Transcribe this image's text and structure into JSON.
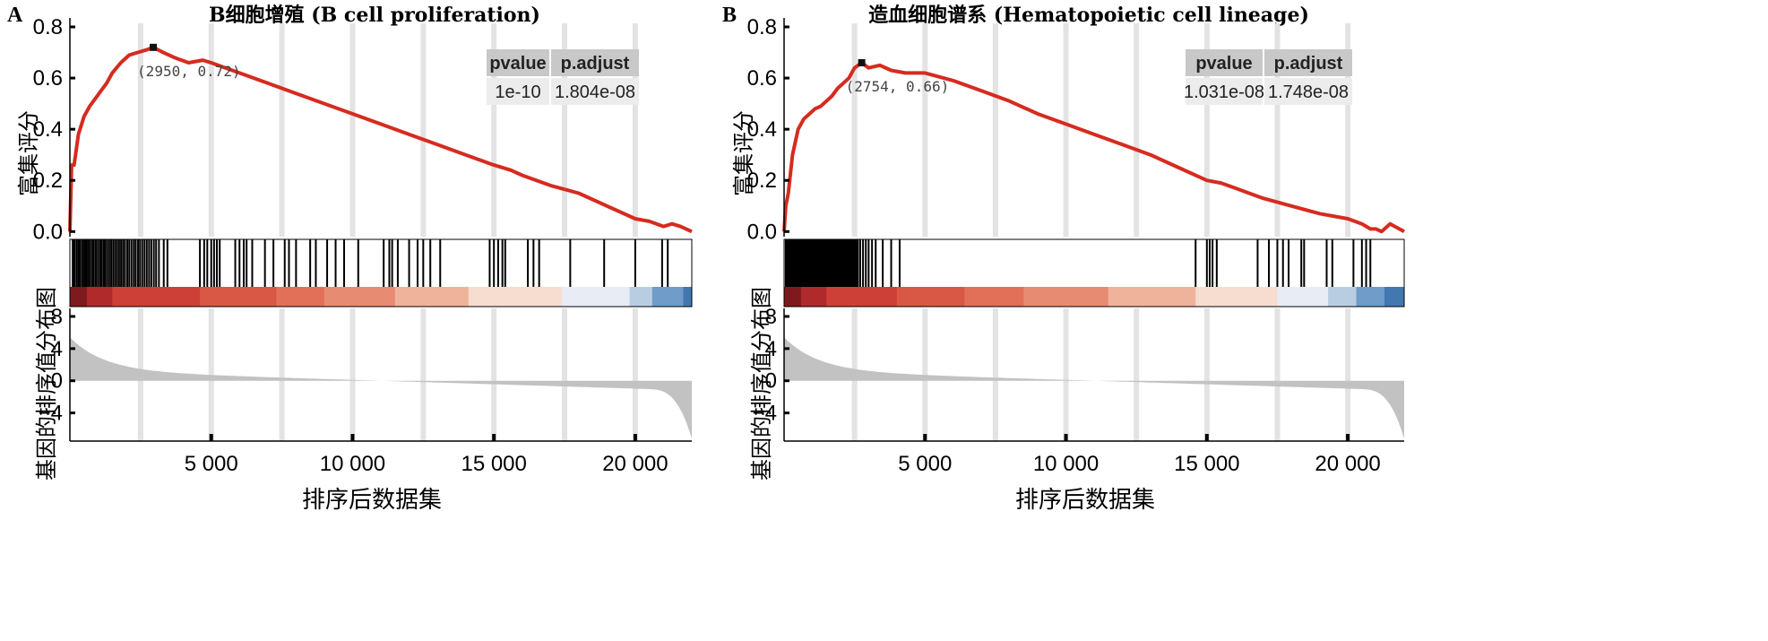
{
  "chart_data": [
    {
      "type": "line",
      "panel": "A",
      "title": "B细胞增殖 (B cell proliferation)",
      "es_ylabel": "富集评分",
      "rank_ylabel": "基因的排序值分布图",
      "xlabel": "排序后数据集",
      "x_ticks": [
        "5 000",
        "10 000",
        "15 000",
        "20 000"
      ],
      "x_tick_values": [
        5000,
        10000,
        15000,
        20000
      ],
      "xlim": [
        0,
        22000
      ],
      "es_yticks": [
        "0.0",
        "0.2",
        "0.4",
        "0.6",
        "0.8"
      ],
      "es_ylim": [
        -0.02,
        0.8
      ],
      "rank_yticks": [
        "8",
        "4",
        "0",
        "−4"
      ],
      "rank_ylim": [
        -7.5,
        9
      ],
      "peak": {
        "x": 2950,
        "y": 0.72,
        "label": "(2950, 0.72)"
      },
      "table": {
        "headers": [
          "pvalue",
          "p.adjust"
        ],
        "values": [
          "1e-10",
          "1.804e-08"
        ]
      },
      "x": [
        0,
        60,
        150,
        300,
        500,
        700,
        900,
        1100,
        1300,
        1500,
        1800,
        2100,
        2400,
        2700,
        2950,
        3300,
        3700,
        4200,
        4700,
        5000,
        5500,
        6000,
        7000,
        8000,
        9000,
        10000,
        11000,
        12000,
        13000,
        14000,
        15000,
        15600,
        16000,
        17000,
        18000,
        19000,
        20000,
        20500,
        21000,
        21300,
        21600,
        22000
      ],
      "es": [
        0.0,
        0.26,
        0.26,
        0.38,
        0.45,
        0.49,
        0.52,
        0.55,
        0.58,
        0.62,
        0.66,
        0.69,
        0.7,
        0.71,
        0.72,
        0.7,
        0.68,
        0.66,
        0.67,
        0.66,
        0.64,
        0.62,
        0.58,
        0.54,
        0.5,
        0.46,
        0.42,
        0.38,
        0.34,
        0.3,
        0.26,
        0.24,
        0.22,
        0.18,
        0.15,
        0.1,
        0.05,
        0.04,
        0.02,
        0.03,
        0.02,
        0.0
      ],
      "hits": [
        100,
        160,
        230,
        290,
        350,
        420,
        480,
        540,
        600,
        660,
        720,
        790,
        850,
        920,
        990,
        1060,
        1120,
        1190,
        1250,
        1320,
        1390,
        1460,
        1530,
        1600,
        1670,
        1740,
        1810,
        1880,
        1950,
        2030,
        2100,
        2180,
        2260,
        2330,
        2410,
        2480,
        2560,
        2640,
        2720,
        2800,
        2880,
        2970,
        3050,
        3150,
        3320,
        3450,
        4600,
        4750,
        4860,
        5000,
        5100,
        5200,
        5300,
        5850,
        6000,
        6150,
        6250,
        6450,
        6900,
        7200,
        7600,
        7750,
        8000,
        8500,
        8700,
        9100,
        9400,
        9700,
        10200,
        11100,
        11300,
        11400,
        11600,
        12000,
        12300,
        12500,
        12750,
        13100,
        14850,
        15000,
        15150,
        15300,
        15400,
        16200,
        16400,
        16600,
        17700,
        18900,
        20000,
        20950,
        21150
      ],
      "heat_colors": [
        "#7e1a1e",
        "#b02a2c",
        "#cc4038",
        "#d85845",
        "#e27059",
        "#e88b73",
        "#efb39c",
        "#f7dcd0",
        "#e7ecf5",
        "#b9cde2",
        "#6f9cc8",
        "#4377b0"
      ],
      "heat_breaks": [
        0,
        600,
        1500,
        4600,
        7300,
        9000,
        11500,
        14100,
        17400,
        19800,
        20600,
        21700,
        22000
      ]
    },
    {
      "type": "line",
      "panel": "B",
      "title": "造血细胞谱系 (Hematopoietic cell lineage)",
      "es_ylabel": "富集评分",
      "rank_ylabel": "基因的排序值分布图",
      "xlabel": "排序后数据集",
      "x_ticks": [
        "5 000",
        "10 000",
        "15 000",
        "20 000"
      ],
      "x_tick_values": [
        5000,
        10000,
        15000,
        20000
      ],
      "xlim": [
        0,
        22000
      ],
      "es_yticks": [
        "0.0",
        "0.2",
        "0.4",
        "0.6",
        "0.8"
      ],
      "es_ylim": [
        -0.02,
        0.8
      ],
      "rank_yticks": [
        "8",
        "4",
        "0",
        "−4"
      ],
      "rank_ylim": [
        -7.5,
        9
      ],
      "peak": {
        "x": 2754,
        "y": 0.66,
        "label": "(2754, 0.66)"
      },
      "table": {
        "headers": [
          "pvalue",
          "p.adjust"
        ],
        "values": [
          "1.031e-08",
          "1.748e-08"
        ]
      },
      "x": [
        0,
        60,
        150,
        300,
        500,
        700,
        900,
        1100,
        1300,
        1500,
        1700,
        1900,
        2100,
        2300,
        2500,
        2754,
        3000,
        3400,
        3800,
        4300,
        5000,
        6000,
        7000,
        8000,
        9000,
        10000,
        11000,
        12000,
        13000,
        14000,
        15000,
        15500,
        16000,
        17000,
        18000,
        19000,
        20000,
        20500,
        20800,
        21000,
        21200,
        21500,
        22000
      ],
      "es": [
        0.0,
        0.1,
        0.15,
        0.3,
        0.4,
        0.44,
        0.46,
        0.48,
        0.49,
        0.51,
        0.53,
        0.56,
        0.58,
        0.6,
        0.64,
        0.66,
        0.64,
        0.65,
        0.63,
        0.62,
        0.62,
        0.59,
        0.55,
        0.51,
        0.46,
        0.42,
        0.38,
        0.34,
        0.3,
        0.25,
        0.2,
        0.19,
        0.17,
        0.13,
        0.1,
        0.07,
        0.05,
        0.03,
        0.01,
        0.01,
        0.0,
        0.03,
        0.0
      ],
      "hits": [
        60,
        110,
        160,
        210,
        260,
        310,
        360,
        410,
        460,
        510,
        560,
        610,
        660,
        710,
        760,
        810,
        860,
        910,
        960,
        1010,
        1060,
        1110,
        1160,
        1210,
        1260,
        1310,
        1360,
        1410,
        1460,
        1510,
        1560,
        1610,
        1660,
        1710,
        1760,
        1810,
        1860,
        1910,
        1960,
        2010,
        2060,
        2110,
        2160,
        2210,
        2260,
        2310,
        2360,
        2410,
        2460,
        2510,
        2560,
        2620,
        2700,
        2800,
        2900,
        3000,
        3120,
        3250,
        3500,
        3800,
        4100,
        14600,
        15000,
        15100,
        15200,
        15350,
        16800,
        17200,
        17500,
        17700,
        17900,
        18350,
        18450,
        19250,
        19450,
        20200,
        20500,
        20650,
        20800
      ],
      "heat_colors": [
        "#7e1a1e",
        "#b02a2c",
        "#cc4038",
        "#d85845",
        "#e27059",
        "#e88b73",
        "#efb39c",
        "#f7dcd0",
        "#e7ecf5",
        "#b9cde2",
        "#6f9cc8",
        "#4377b0"
      ],
      "heat_breaks": [
        0,
        600,
        1500,
        4000,
        6400,
        8500,
        11500,
        14600,
        17500,
        19300,
        20300,
        21300,
        22000
      ]
    }
  ]
}
